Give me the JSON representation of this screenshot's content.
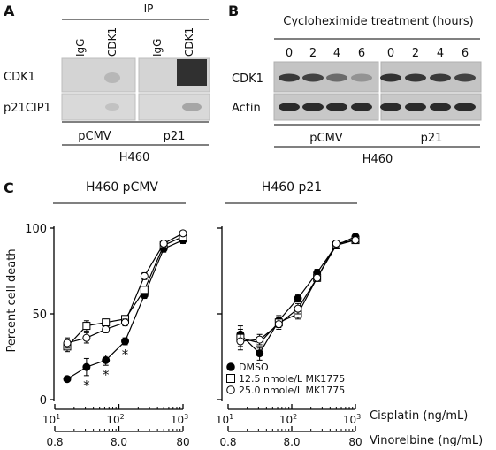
{
  "panelA": {
    "letter": "A",
    "ip_label": "IP",
    "lanes": [
      "IgG",
      "CDK1",
      "IgG",
      "CDK1"
    ],
    "rows": [
      "CDK1",
      "p21CIP1"
    ],
    "groups": [
      "pCMV",
      "p21"
    ],
    "cell_line": "H460"
  },
  "panelB": {
    "letter": "B",
    "title": "Cycloheximide treatment (hours)",
    "timepoints": [
      "0",
      "2",
      "4",
      "6",
      "0",
      "2",
      "4",
      "6"
    ],
    "rows": [
      "CDK1",
      "Actin"
    ],
    "groups": [
      "pCMV",
      "p21"
    ],
    "cell_line": "H460"
  },
  "panelC": {
    "letter": "C",
    "plot_titles": [
      "H460 pCMV",
      "H460 p21"
    ],
    "ylabel": "Percent cell death",
    "x_axis1_label": "Cisplatin (ng/mL)",
    "x_axis2_label": "Vinorelbine (ng/mL)",
    "y_ticks": [
      "0",
      "50",
      "100"
    ],
    "x1_tick_mantissa": "10",
    "x1_tick_exponents": [
      "1",
      "2",
      "3"
    ],
    "x2_ticks": [
      "0.8",
      "8.0",
      "80"
    ],
    "legend": [
      "DMSO",
      "12.5 nmole/L MK1775",
      "25.0 nmole/L MK1775"
    ],
    "significance_mark": "*"
  },
  "chart_data": [
    {
      "type": "line",
      "title": "H460 pCMV",
      "xlabel": "Cisplatin (ng/mL)",
      "ylabel": "Percent cell death",
      "x_scale": "log",
      "xlim": [
        10,
        1000
      ],
      "ylim": [
        0,
        100
      ],
      "x": [
        15.6,
        31.25,
        62.5,
        125,
        250,
        500,
        1000
      ],
      "series": [
        {
          "name": "DMSO",
          "values": [
            12,
            19,
            23,
            34,
            61,
            88,
            93
          ],
          "errors": [
            1,
            5,
            3,
            2,
            2,
            2,
            2
          ]
        },
        {
          "name": "12.5 nmole/L MK1775",
          "values": [
            31,
            43,
            45,
            47,
            64,
            90,
            95
          ],
          "errors": [
            3,
            3,
            2,
            2,
            2,
            2,
            1
          ]
        },
        {
          "name": "25.0 nmole/L MK1775",
          "values": [
            33,
            36,
            41,
            45,
            72,
            91,
            97
          ],
          "errors": [
            3,
            3,
            2,
            2,
            2,
            2,
            1
          ]
        }
      ],
      "significant_points_x": [
        31.25,
        62.5,
        125
      ]
    },
    {
      "type": "line",
      "title": "H460 p21",
      "xlabel": "Cisplatin (ng/mL)",
      "ylabel": "Percent cell death",
      "x_scale": "log",
      "xlim": [
        10,
        1000
      ],
      "ylim": [
        0,
        100
      ],
      "x": [
        15.6,
        31.25,
        62.5,
        125,
        250,
        500,
        1000
      ],
      "series": [
        {
          "name": "DMSO",
          "values": [
            38,
            27,
            46,
            59,
            74,
            90,
            95
          ],
          "errors": [
            5,
            4,
            3,
            2,
            2,
            2,
            1
          ]
        },
        {
          "name": "12.5 nmole/L MK1775",
          "values": [
            36,
            33,
            45,
            50,
            71,
            90,
            93
          ],
          "errors": [
            5,
            3,
            3,
            3,
            2,
            2,
            1
          ]
        },
        {
          "name": "25.0 nmole/L MK1775",
          "values": [
            34,
            35,
            44,
            53,
            71,
            91,
            93
          ],
          "errors": [
            5,
            3,
            3,
            3,
            2,
            2,
            1
          ]
        }
      ]
    }
  ]
}
